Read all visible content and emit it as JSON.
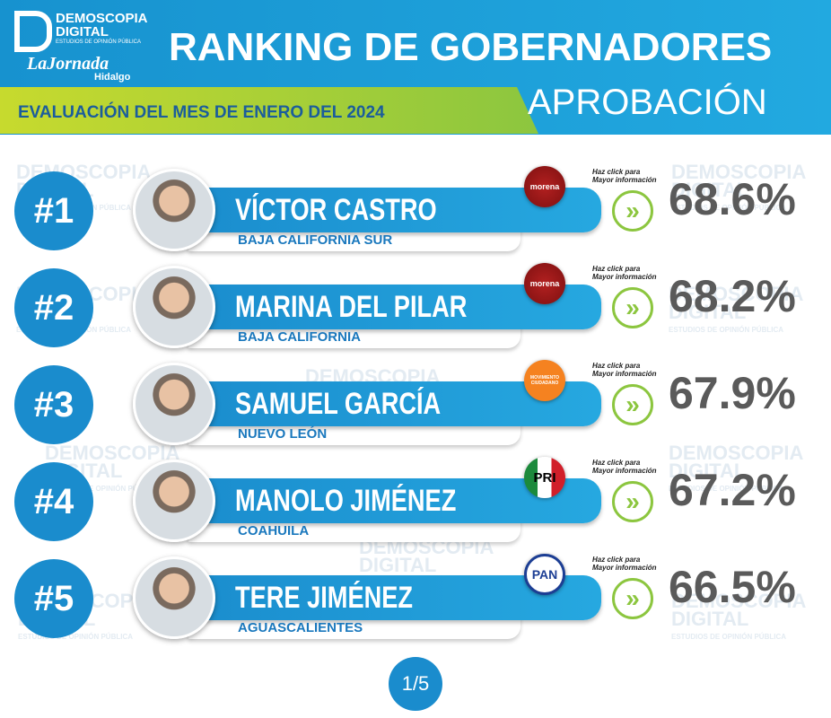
{
  "header": {
    "brand": "DEMOSCOPIA",
    "brand2": "DIGITAL",
    "brand_sub": "ESTUDIOS DE OPINIÓN PÚBLICA",
    "partner": "LaJornada",
    "partner_sub": "Hidalgo",
    "title": "RANKING DE GOBERNADORES",
    "subtitle": "EVALUACIÓN DEL MES DE ENERO DEL 2024",
    "section": "APROBACIÓN"
  },
  "watermark": [
    "DEMOSCOPIA",
    "DIGITAL",
    "ESTUDIOS DE OPINIÓN PÚBLICA"
  ],
  "rows": [
    {
      "rank": "#1",
      "name": "VÍCTOR CASTRO",
      "state": "BAJA CALIFORNIA SUR",
      "party": "morena",
      "cta": [
        "Haz click para",
        "Mayor información"
      ],
      "value": "68.6%"
    },
    {
      "rank": "#2",
      "name": "MARINA DEL PILAR",
      "state": "BAJA CALIFORNIA",
      "party": "morena",
      "cta": [
        "Haz click para",
        "Mayor información"
      ],
      "value": "68.2%"
    },
    {
      "rank": "#3",
      "name": "SAMUEL GARCÍA",
      "state": "NUEVO LEÓN",
      "party": "MOVIMIENTO CIUDADANO",
      "cta": [
        "Haz click para",
        "Mayor información"
      ],
      "value": "67.9%"
    },
    {
      "rank": "#4",
      "name": "MANOLO JIMÉNEZ",
      "state": "COAHUILA",
      "party": "PRI",
      "cta": [
        "Haz click para",
        "Mayor información"
      ],
      "value": "67.2%"
    },
    {
      "rank": "#5",
      "name": "TERE JIMÉNEZ",
      "state": "AGUASCALIENTES",
      "party": "PAN",
      "cta": [
        "Haz click para",
        "Mayor información"
      ],
      "value": "66.5%"
    }
  ],
  "pagination": "1/5"
}
